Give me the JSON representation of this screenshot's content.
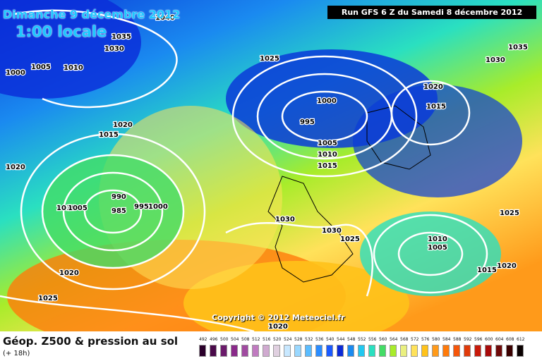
{
  "header": {
    "date": "Dimanche 9 décembre 2012",
    "hour": "1:00 locale",
    "run": "Run GFS 6 Z du Samedi 8 décembre 2012"
  },
  "footer": {
    "variable": "Géop. Z500 & pression au sol",
    "lead": "(+ 18h)",
    "copyright": "Copyright © 2012 Meteociel.fr"
  },
  "legend": {
    "values": [
      "492",
      "496",
      "500",
      "504",
      "508",
      "512",
      "516",
      "520",
      "524",
      "528",
      "532",
      "536",
      "540",
      "544",
      "548",
      "552",
      "556",
      "560",
      "564",
      "568",
      "572",
      "576",
      "580",
      "584",
      "588",
      "592",
      "596",
      "600",
      "604",
      "608",
      "612"
    ],
    "colors": [
      "#2a002a",
      "#4a0a4a",
      "#6b1a6b",
      "#8a2a8a",
      "#a04aa0",
      "#c07ac0",
      "#d0aad0",
      "#e0d0e0",
      "#c8e8ff",
      "#9ad8ff",
      "#5abcff",
      "#2a8cff",
      "#1a5aff",
      "#0a2ad8",
      "#1a8af0",
      "#22c8f0",
      "#2ae0c0",
      "#44dc66",
      "#a8ec2a",
      "#eaf080",
      "#ffe25a",
      "#ffc21a",
      "#ff9a1a",
      "#ff7a0a",
      "#f5560a",
      "#e03a0a",
      "#c81a0a",
      "#a80a0a",
      "#6e0a0a",
      "#3a0000",
      "#0a0000"
    ]
  },
  "isobars": [
    {
      "label": "995",
      "x": 990,
      "y": 992
    },
    {
      "label": "985",
      "x": 985,
      "y": 987
    },
    {
      "label": "990",
      "x": 990,
      "y": 992
    },
    {
      "label": "1000",
      "x": 1000,
      "y": 1000
    },
    {
      "label": "1005",
      "x": 1005,
      "y": 1005
    }
  ],
  "map_labels": [
    "1000",
    "1005",
    "1010",
    "1035",
    "1030",
    "1040",
    "1025",
    "1030",
    "1035",
    "1000",
    "995",
    "1020",
    "1015",
    "1005",
    "1010",
    "1015",
    "1020",
    "1015",
    "1020",
    "990",
    "985",
    "995",
    "1000",
    "1010",
    "1005",
    "1030",
    "1030",
    "1025",
    "1025",
    "1010",
    "1005",
    "1015",
    "1020",
    "1020",
    "1025",
    "1020"
  ],
  "colors": {
    "accent": "#1ec8ff",
    "run_bg": "#000000",
    "isobar": "#ffffff"
  }
}
